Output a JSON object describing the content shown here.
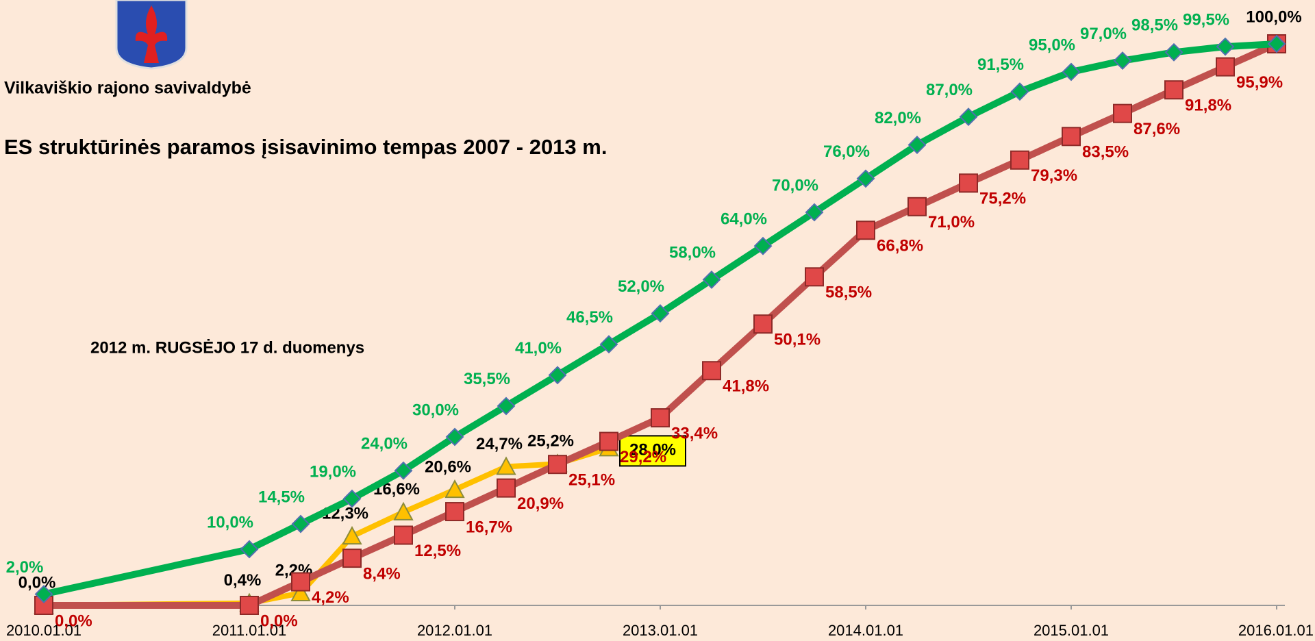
{
  "org": "Vilkaviškio rajono savivaldybė",
  "chart_data": {
    "type": "line",
    "title": "ES struktūrinės paramos įsisavinimo tempas 2007 - 2013 m.",
    "annotation": "2012 m. RUGSĖJO 17 d. duomenys",
    "x": [
      "2010.01.01",
      "2011.01.01",
      "2011.04.01",
      "2011.07.01",
      "2011.10.01",
      "2012.01.01",
      "2012.04.01",
      "2012.07.01",
      "2012.10.01",
      "2013.01.01",
      "2013.04.01",
      "2013.07.01",
      "2013.10.01",
      "2014.01.01",
      "2014.04.01",
      "2014.07.01",
      "2014.10.01",
      "2015.01.01",
      "2015.04.01",
      "2015.07.01",
      "2015.10.01",
      "2016.01.01"
    ],
    "xlim": [
      "2010.01.01",
      "2016.01.01"
    ],
    "xticks": [
      "2010.01.01",
      "2011.01.01",
      "2012.01.01",
      "2013.01.01",
      "2014.01.01",
      "2015.01.01",
      "2016.01.01"
    ],
    "ylim": [
      0,
      100
    ],
    "series": [
      {
        "color": "#00b050",
        "marker": "diamond",
        "values": [
          2.0,
          10.0,
          14.5,
          19.0,
          24.0,
          30.0,
          35.5,
          41.0,
          46.5,
          52.0,
          58.0,
          64.0,
          70.0,
          76.0,
          82.0,
          87.0,
          91.5,
          95.0,
          97.0,
          98.5,
          99.5,
          100.0
        ],
        "value_labels": [
          "2,0%",
          "10,0%",
          "14,5%",
          "19,0%",
          "24,0%",
          "30,0%",
          "35,5%",
          "41,0%",
          "46,5%",
          "52,0%",
          "58,0%",
          "64,0%",
          "70,0%",
          "76,0%",
          "82,0%",
          "87,0%",
          "91,5%",
          "95,0%",
          "97,0%",
          "98,5%",
          "99,5%",
          "100,0%"
        ]
      },
      {
        "color": "#c0504d",
        "marker": "square",
        "values": [
          0.0,
          0.0,
          4.2,
          8.4,
          12.5,
          16.7,
          20.9,
          25.1,
          29.2,
          33.4,
          41.8,
          50.1,
          58.5,
          66.8,
          71.0,
          75.2,
          79.3,
          83.5,
          87.6,
          91.8,
          95.9,
          100.0
        ],
        "value_labels": [
          "0,0%",
          "0,0%",
          "4,2%",
          "8,4%",
          "12,5%",
          "16,7%",
          "20,9%",
          "25,1%",
          "29,2%",
          "33,4%",
          "41,8%",
          "50,1%",
          "58,5%",
          "66,8%",
          "71,0%",
          "75,2%",
          "79,3%",
          "83,5%",
          "87,6%",
          "91,8%",
          "95,9%",
          null
        ]
      },
      {
        "color": "#ffc000",
        "marker": "triangle",
        "highlight": 8,
        "values": [
          0.0,
          0.4,
          2.2,
          12.3,
          16.6,
          20.6,
          24.7,
          25.2,
          28.0,
          null,
          null,
          null,
          null,
          null,
          null,
          null,
          null,
          null,
          null,
          null,
          null,
          null
        ],
        "value_labels": [
          "0,0%",
          "0,4%",
          "2,2%",
          "12,3%",
          "16,6%",
          "20,6%",
          "24,7%",
          "25,2%",
          "28,0%",
          null,
          null,
          null,
          null,
          null,
          null,
          null,
          null,
          null,
          null,
          null,
          null,
          null
        ]
      }
    ]
  }
}
